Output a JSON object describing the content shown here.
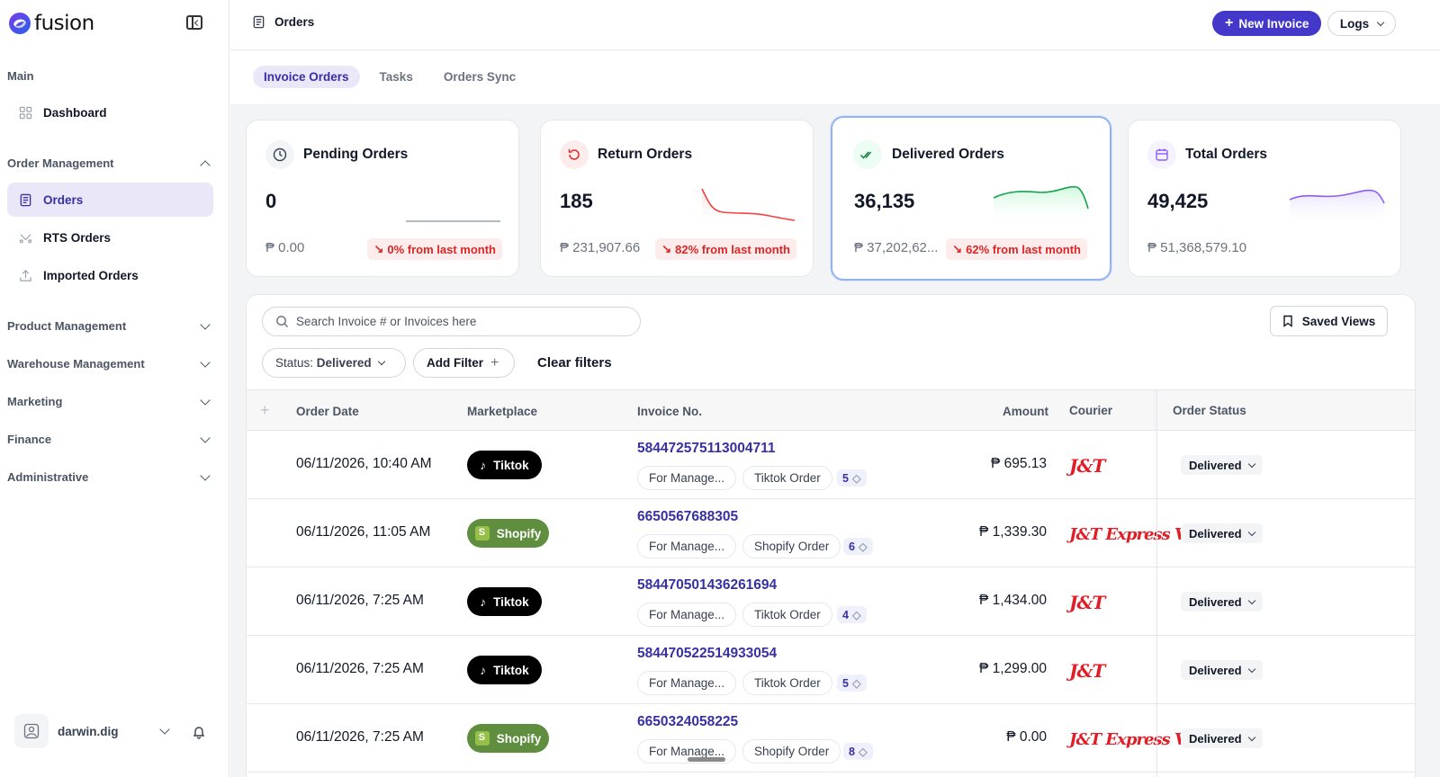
{
  "app": {
    "name": "fusion"
  },
  "sidebar": {
    "main_section": "Main",
    "dashboard": "Dashboard",
    "order_management": "Order Management",
    "orders": "Orders",
    "rts_orders": "RTS Orders",
    "imported_orders": "Imported Orders",
    "groups": [
      "Product Management",
      "Warehouse Management",
      "Marketing",
      "Finance",
      "Administrative"
    ],
    "user": "darwin.dig"
  },
  "header": {
    "title": "Orders",
    "new_invoice": "New Invoice",
    "logs": "Logs"
  },
  "tabs": [
    "Invoice Orders",
    "Tasks",
    "Orders Sync"
  ],
  "cards": [
    {
      "title": "Pending Orders",
      "value": "0",
      "amount": "₱ 0.00",
      "badge": "0% from last month"
    },
    {
      "title": "Return Orders",
      "value": "185",
      "amount": "₱ 231,907.66",
      "badge": "82% from last month"
    },
    {
      "title": "Delivered Orders",
      "value": "36,135",
      "amount": "₱ 37,202,62...",
      "badge": "62% from last month"
    },
    {
      "title": "Total Orders",
      "value": "49,425",
      "amount": "₱ 51,368,579.10",
      "badge": ""
    }
  ],
  "search": {
    "placeholder": "Search Invoice # or Invoices here"
  },
  "saved_views": "Saved Views",
  "filters": {
    "status_label": "Status:",
    "status_value": "Delivered",
    "add_filter": "Add Filter",
    "clear": "Clear filters"
  },
  "table": {
    "columns": [
      "Order Date",
      "Marketplace",
      "Invoice No.",
      "Amount",
      "Courier",
      "Order Status"
    ],
    "rows": [
      {
        "date": "06/11/2026, 10:40 AM",
        "marketplace": "Tiktok",
        "invoice": "584472575113004711",
        "tag1": "For Manage...",
        "tag2": "Tiktok Order",
        "count": "5",
        "amount": "₱ 695.13",
        "courier": "J&T",
        "status": "Delivered"
      },
      {
        "date": "06/11/2026, 11:05 AM",
        "marketplace": "Shopify",
        "invoice": "6650567688305",
        "tag1": "For Manage...",
        "tag2": "Shopify Order",
        "count": "6",
        "amount": "₱ 1,339.30",
        "courier": "J&T Express VIP",
        "status": "Delivered"
      },
      {
        "date": "06/11/2026, 7:25 AM",
        "marketplace": "Tiktok",
        "invoice": "584470501436261694",
        "tag1": "For Manage...",
        "tag2": "Tiktok Order",
        "count": "4",
        "amount": "₱ 1,434.00",
        "courier": "J&T",
        "status": "Delivered"
      },
      {
        "date": "06/11/2026, 7:25 AM",
        "marketplace": "Tiktok",
        "invoice": "584470522514933054",
        "tag1": "For Manage...",
        "tag2": "Tiktok Order",
        "count": "5",
        "amount": "₱ 1,299.00",
        "courier": "J&T",
        "status": "Delivered"
      },
      {
        "date": "06/11/2026, 7:25 AM",
        "marketplace": "Shopify",
        "invoice": "6650324058225",
        "tag1": "For Manage...",
        "tag2": "Shopify Order",
        "count": "8",
        "amount": "₱ 0.00",
        "courier": "J&T Express VIP",
        "status": "Delivered"
      }
    ]
  },
  "colors": {
    "accent": "#4338ca",
    "active_bg": "#e9e7f8",
    "danger": "#dc2626",
    "green": "#16a34a",
    "purple": "#8b5cf6"
  }
}
